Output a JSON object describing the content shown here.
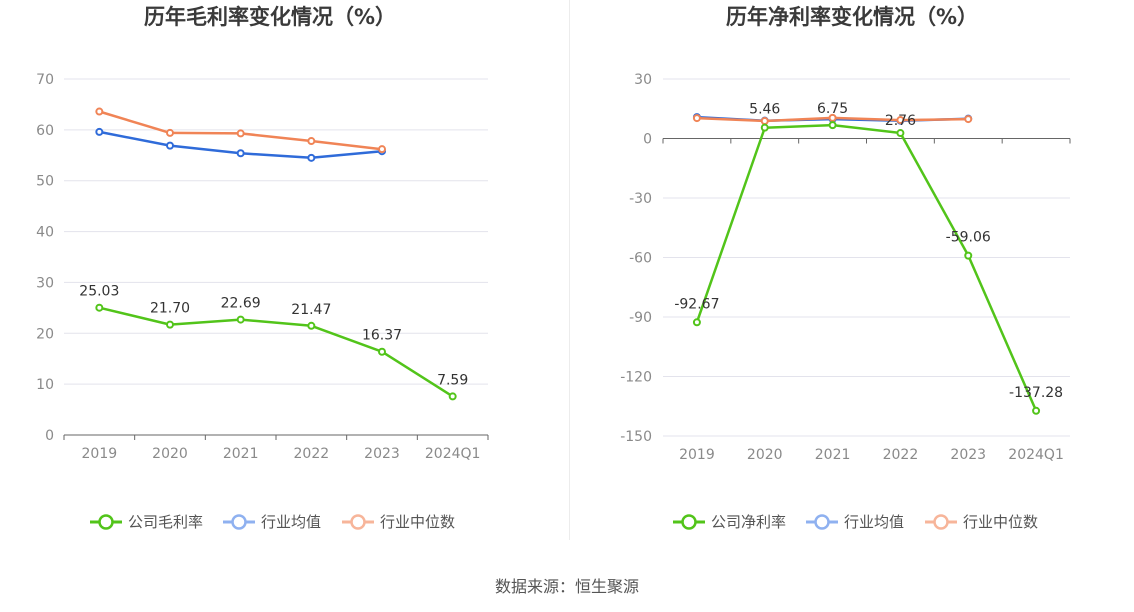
{
  "footer": "数据来源：恒生聚源",
  "colors": {
    "company": "#52c41a",
    "industry_avg": "#2f6bd9",
    "industry_median": "#f08456",
    "legend_avg": "#8fb1f0",
    "legend_median": "#f7b59a",
    "grid": "#e3e3ec",
    "axis": "#666666"
  },
  "chart_data": [
    {
      "type": "line",
      "title": "历年毛利率变化情况（%）",
      "categories": [
        "2019",
        "2020",
        "2021",
        "2022",
        "2023",
        "2024Q1"
      ],
      "ylim": [
        0,
        70
      ],
      "yticks": [
        0,
        10,
        20,
        30,
        40,
        50,
        60,
        70
      ],
      "grid": true,
      "legend_position": "bottom",
      "series": [
        {
          "name": "公司毛利率",
          "values": [
            25.03,
            21.7,
            22.69,
            21.47,
            16.37,
            7.59
          ],
          "labels": [
            "25.03",
            "21.70",
            "22.69",
            "21.47",
            "16.37",
            "7.59"
          ]
        },
        {
          "name": "行业均值",
          "values": [
            59.6,
            56.9,
            55.4,
            54.5,
            55.8,
            null
          ]
        },
        {
          "name": "行业中位数",
          "values": [
            63.6,
            59.4,
            59.3,
            57.8,
            56.2,
            null
          ]
        }
      ]
    },
    {
      "type": "line",
      "title": "历年净利率变化情况（%）",
      "categories": [
        "2019",
        "2020",
        "2021",
        "2022",
        "2023",
        "2024Q1"
      ],
      "ylim": [
        -150,
        30
      ],
      "yticks": [
        -150,
        -120,
        -90,
        -60,
        -30,
        0,
        30
      ],
      "grid": true,
      "legend_position": "bottom",
      "series": [
        {
          "name": "公司净利率",
          "values": [
            -92.67,
            5.46,
            6.75,
            2.76,
            -59.06,
            -137.28
          ],
          "labels": [
            "-92.67",
            "5.46",
            "6.75",
            "2.76",
            "-59.06",
            "-137.28"
          ]
        },
        {
          "name": "行业均值",
          "values": [
            10.8,
            9.0,
            9.8,
            9.0,
            10.0,
            null
          ]
        },
        {
          "name": "行业中位数",
          "values": [
            10.3,
            8.8,
            10.4,
            9.3,
            9.8,
            null
          ]
        }
      ]
    }
  ]
}
